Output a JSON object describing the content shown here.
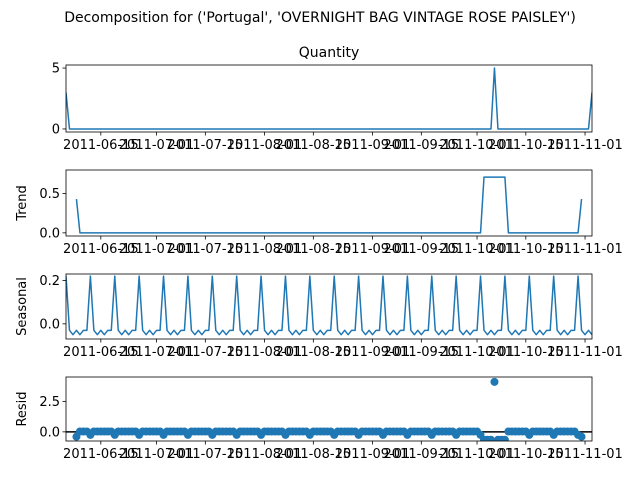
{
  "chart_data": {
    "type": "line",
    "title": "Decomposition for ('Portugal', 'OVERNIGHT BAG VINTAGE ROSE PAISLEY')",
    "x_tick_labels": [
      "2011-06-15",
      "2011-07-01",
      "2011-07-15",
      "2011-08-01",
      "2011-08-15",
      "2011-09-01",
      "2011-09-15",
      "2011-10-01",
      "2011-10-15",
      "2011-11-01"
    ],
    "x_range": [
      "2011-06-05",
      "2011-11-03"
    ],
    "line_color": "#1f77b4",
    "panels": [
      {
        "name": "observed",
        "title": "Quantity",
        "ylabel": "",
        "ylim": [
          -0.25,
          5.25
        ],
        "yticks": [
          0,
          5
        ],
        "series": {
          "kind": "line",
          "points": [
            {
              "day": 0,
              "value": 3
            },
            {
              "day": 1,
              "value": 0
            },
            {
              "day": 122,
              "value": 0
            },
            {
              "day": 123,
              "value": 5
            },
            {
              "day": 124,
              "value": 0
            },
            {
              "day": 150,
              "value": 0
            },
            {
              "day": 151,
              "value": 3
            }
          ]
        }
      },
      {
        "name": "trend",
        "title": "",
        "ylabel": "Trend",
        "ylim": [
          -0.04,
          0.8
        ],
        "yticks": [
          0.0,
          0.5
        ],
        "series": {
          "kind": "line",
          "points": [
            {
              "day": 3,
              "value": 0.43
            },
            {
              "day": 4,
              "value": 0
            },
            {
              "day": 119,
              "value": 0
            },
            {
              "day": 120,
              "value": 0.71
            },
            {
              "day": 126,
              "value": 0.71
            },
            {
              "day": 127,
              "value": 0
            },
            {
              "day": 147,
              "value": 0
            },
            {
              "day": 148,
              "value": 0.43
            }
          ]
        }
      },
      {
        "name": "seasonal",
        "title": "",
        "ylabel": "Seasonal",
        "ylim": [
          -0.07,
          0.23
        ],
        "yticks": [
          0.0,
          0.2
        ],
        "series": {
          "kind": "line",
          "period": 7,
          "spike_offset": 0,
          "pattern": [
            0.22,
            -0.03,
            -0.05,
            -0.03,
            -0.05,
            -0.03,
            -0.03
          ],
          "days": [
            0,
            151
          ]
        }
      },
      {
        "name": "resid",
        "title": "",
        "ylabel": "Resid",
        "ylim": [
          -0.75,
          4.5
        ],
        "yticks": [
          0.0,
          2.5
        ],
        "zero_line": true,
        "series": {
          "kind": "scatter",
          "days": [
            3,
            148
          ],
          "default": 0.03,
          "weekly_low": {
            "offset": 0,
            "value": -0.25
          },
          "overrides": [
            {
              "day": 3,
              "value": -0.4
            },
            {
              "day": 120,
              "value": -0.65
            },
            {
              "day": 121,
              "value": -0.65
            },
            {
              "day": 122,
              "value": -0.65
            },
            {
              "day": 123,
              "value": 4.1
            },
            {
              "day": 124,
              "value": -0.65
            },
            {
              "day": 125,
              "value": -0.65
            },
            {
              "day": 126,
              "value": -0.65
            },
            {
              "day": 148,
              "value": -0.4
            }
          ]
        }
      }
    ]
  }
}
